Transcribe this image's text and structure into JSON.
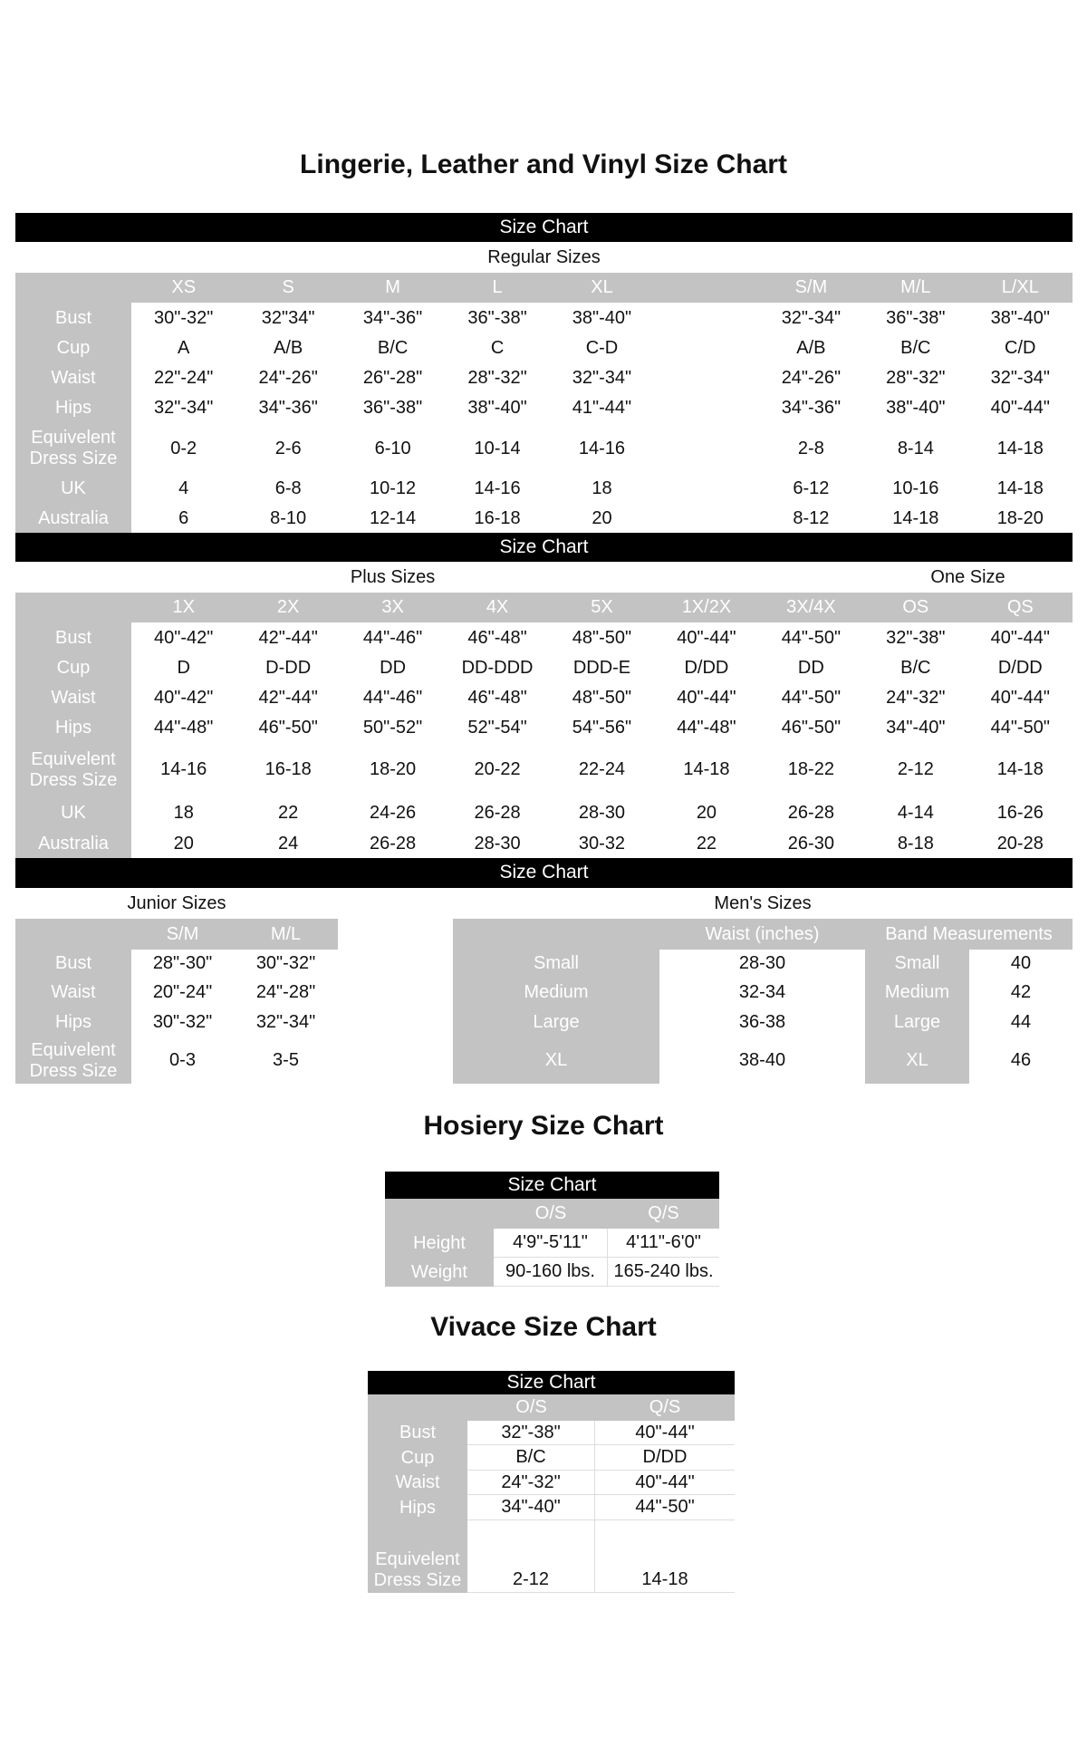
{
  "titles": {
    "main": "Lingerie, Leather and Vinyl Size Chart",
    "hosiery": "Hosiery Size Chart",
    "vivace": "Vivace Size Chart"
  },
  "bar_label": "Size Chart",
  "regular": {
    "subtitle": "Regular Sizes",
    "headers": [
      "XS",
      "S",
      "M",
      "L",
      "XL",
      "",
      "S/M",
      "M/L",
      "L/XL"
    ],
    "rows": [
      {
        "label": "Bust",
        "values": [
          "30\"-32\"",
          "32\"34\"",
          "34\"-36\"",
          "36\"-38\"",
          "38\"-40\"",
          "",
          "32\"-34\"",
          "36\"-38\"",
          "38\"-40\""
        ]
      },
      {
        "label": "Cup",
        "values": [
          "A",
          "A/B",
          "B/C",
          "C",
          "C-D",
          "",
          "A/B",
          "B/C",
          "C/D"
        ]
      },
      {
        "label": "Waist",
        "values": [
          "22\"-24\"",
          "24\"-26\"",
          "26\"-28\"",
          "28\"-32\"",
          "32\"-34\"",
          "",
          "24\"-26\"",
          "28\"-32\"",
          "32\"-34\""
        ]
      },
      {
        "label": "Hips",
        "values": [
          "32\"-34\"",
          "34\"-36\"",
          "36\"-38\"",
          "38\"-40\"",
          "41\"-44\"",
          "",
          "34\"-36\"",
          "38\"-40\"",
          "40\"-44\""
        ]
      },
      {
        "label": "Equivelent Dress Size",
        "values": [
          "0-2",
          "2-6",
          "6-10",
          "10-14",
          "14-16",
          "",
          "2-8",
          "8-14",
          "14-18"
        ]
      },
      {
        "label": "UK",
        "values": [
          "4",
          "6-8",
          "10-12",
          "14-16",
          "18",
          "",
          "6-12",
          "10-16",
          "14-18"
        ]
      },
      {
        "label": "Australia",
        "values": [
          "6",
          "8-10",
          "12-14",
          "16-18",
          "20",
          "",
          "8-12",
          "14-18",
          "18-20"
        ]
      }
    ]
  },
  "plus": {
    "subtitle": "Plus Sizes",
    "subtitle2": "One Size",
    "headers": [
      "1X",
      "2X",
      "3X",
      "4X",
      "5X",
      "1X/2X",
      "3X/4X",
      "OS",
      "QS"
    ],
    "rows": [
      {
        "label": "Bust",
        "values": [
          "40\"-42\"",
          "42\"-44\"",
          "44\"-46\"",
          "46\"-48\"",
          "48\"-50\"",
          "40\"-44\"",
          "44\"-50\"",
          "32\"-38\"",
          "40\"-44\""
        ]
      },
      {
        "label": "Cup",
        "values": [
          "D",
          "D-DD",
          "DD",
          "DD-DDD",
          "DDD-E",
          "D/DD",
          "DD",
          "B/C",
          "D/DD"
        ]
      },
      {
        "label": "Waist",
        "values": [
          "40\"-42\"",
          "42\"-44\"",
          "44\"-46\"",
          "46\"-48\"",
          "48\"-50\"",
          "40\"-44\"",
          "44\"-50\"",
          "24\"-32\"",
          "40\"-44\""
        ]
      },
      {
        "label": "Hips",
        "values": [
          "44\"-48\"",
          "46\"-50\"",
          "50\"-52\"",
          "52\"-54\"",
          "54\"-56\"",
          "44\"-48\"",
          "46\"-50\"",
          "34\"-40\"",
          "44\"-50\""
        ]
      },
      {
        "label": "Equivelent Dress Size",
        "values": [
          "14-16",
          "16-18",
          "18-20",
          "20-22",
          "22-24",
          "14-18",
          "18-22",
          "2-12",
          "14-18"
        ]
      },
      {
        "label": "UK",
        "values": [
          "18",
          "22",
          "24-26",
          "26-28",
          "28-30",
          "20",
          "26-28",
          "4-14",
          "16-26"
        ]
      },
      {
        "label": "Australia",
        "values": [
          "20",
          "24",
          "26-28",
          "28-30",
          "30-32",
          "22",
          "26-30",
          "8-18",
          "20-28"
        ]
      }
    ]
  },
  "junior": {
    "subtitle": "Junior Sizes",
    "headers": [
      "S/M",
      "M/L"
    ],
    "rows": [
      {
        "label": "Bust",
        "values": [
          "28\"-30\"",
          "30\"-32\""
        ]
      },
      {
        "label": "Waist",
        "values": [
          "20\"-24\"",
          "24\"-28\""
        ]
      },
      {
        "label": "Hips",
        "values": [
          "30\"-32\"",
          "32\"-34\""
        ]
      },
      {
        "label": "Equivelent Dress Size",
        "values": [
          "0-3",
          "3-5"
        ]
      }
    ]
  },
  "mens": {
    "subtitle": "Men's Sizes",
    "waist_header": "Waist (inches)",
    "band_header": "Band Measurements",
    "waist_rows": [
      {
        "label": "Small",
        "value": "28-30"
      },
      {
        "label": "Medium",
        "value": "32-34"
      },
      {
        "label": "Large",
        "value": "36-38"
      },
      {
        "label": "XL",
        "value": "38-40"
      }
    ],
    "band_rows": [
      {
        "label": "Small",
        "value": "40"
      },
      {
        "label": "Medium",
        "value": "42"
      },
      {
        "label": "Large",
        "value": "44"
      },
      {
        "label": "XL",
        "value": "46"
      }
    ]
  },
  "hosiery": {
    "headers": [
      "O/S",
      "Q/S"
    ],
    "rows": [
      {
        "label": "Height",
        "values": [
          "4'9\"-5'11\"",
          "4'11\"-6'0\""
        ]
      },
      {
        "label": "Weight",
        "values": [
          "90-160 lbs.",
          "165-240 lbs."
        ]
      }
    ]
  },
  "vivace": {
    "headers": [
      "O/S",
      "Q/S"
    ],
    "rows": [
      {
        "label": "Bust",
        "values": [
          "32\"-38\"",
          "40\"-44\""
        ]
      },
      {
        "label": "Cup",
        "values": [
          "B/C",
          "D/DD"
        ]
      },
      {
        "label": "Waist",
        "values": [
          "24\"-32\"",
          "40\"-44\""
        ]
      },
      {
        "label": "Hips",
        "values": [
          "34\"-40\"",
          "44\"-50\""
        ]
      },
      {
        "label": "Equivelent Dress Size",
        "values": [
          "2-12",
          "14-18"
        ]
      }
    ]
  }
}
